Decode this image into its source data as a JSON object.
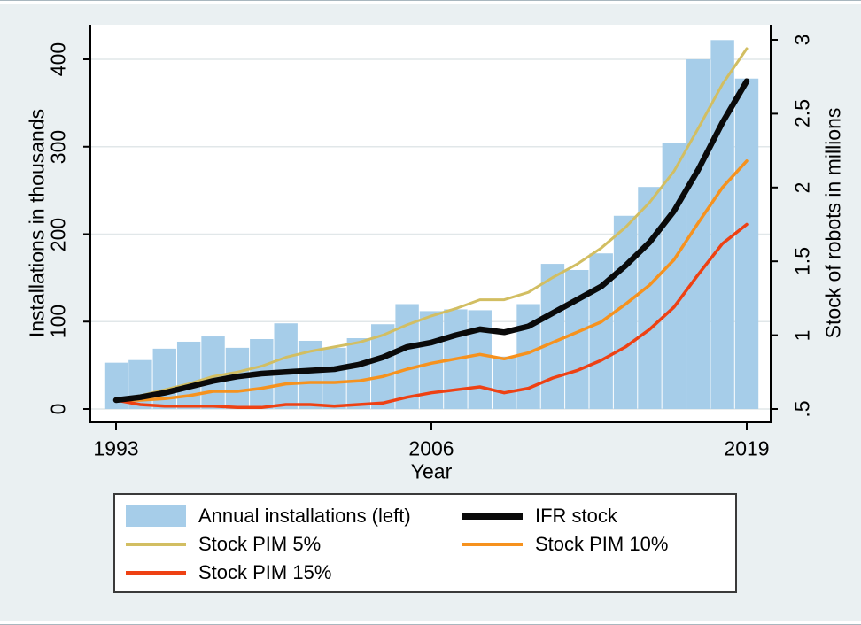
{
  "figure": {
    "background_color": "#EAF0F2",
    "plot_background_color": "#FFFFFF",
    "gridline_color": "#E1E7E9",
    "bar_color": "#A6CDE9",
    "axis_color": "#000000"
  },
  "axes": {
    "left": {
      "title": "Installations in thousands",
      "tick_labels": [
        "0",
        "100",
        "200",
        "300",
        "400"
      ],
      "tick_values": [
        0,
        100,
        200,
        300,
        400
      ]
    },
    "right": {
      "title": "Stock of robots in millions",
      "tick_labels": [
        ".5",
        "1",
        "1.5",
        "2",
        "2.5",
        "3"
      ],
      "tick_values": [
        0.5,
        1,
        1.5,
        2,
        2.5,
        3
      ]
    },
    "x": {
      "title": "Year",
      "tick_labels": [
        "1993",
        "2006",
        "2019"
      ],
      "tick_values": [
        1993,
        2006,
        2019
      ]
    }
  },
  "legend": {
    "items": [
      {
        "label": "Annual installations (left)",
        "color": "#A6CDE9",
        "swatch": "bar"
      },
      {
        "label": "IFR stock",
        "color": "#0A0A0A",
        "swatch": "thick"
      },
      {
        "label": "Stock PIM 5%",
        "color": "#D2BE62",
        "swatch": "line"
      },
      {
        "label": "Stock PIM 10%",
        "color": "#F6921E",
        "swatch": "line"
      },
      {
        "label": "Stock PIM 15%",
        "color": "#EE4113",
        "swatch": "line"
      }
    ]
  },
  "chart_data": {
    "type": "combo-bar-line",
    "x": [
      1993,
      1994,
      1995,
      1996,
      1997,
      1998,
      1999,
      2000,
      2001,
      2002,
      2003,
      2004,
      2005,
      2006,
      2007,
      2008,
      2009,
      2010,
      2011,
      2012,
      2013,
      2014,
      2015,
      2016,
      2017,
      2018,
      2019
    ],
    "xlabel": "Year",
    "left_axis": {
      "label": "Installations in thousands",
      "range": [
        0,
        440
      ],
      "grid": true
    },
    "right_axis": {
      "label": "Stock of robots in millions",
      "range": [
        0.5,
        3.1
      ],
      "grid": false
    },
    "legend_position": "bottom",
    "series": [
      {
        "name": "Annual installations (left)",
        "type": "bar",
        "axis": "left",
        "color": "#A6CDE9",
        "values": [
          53,
          56,
          69,
          77,
          83,
          70,
          80,
          98,
          78,
          70,
          81,
          97,
          120,
          112,
          114,
          113,
          60,
          120,
          166,
          159,
          178,
          221,
          254,
          304,
          400,
          422,
          378
        ]
      },
      {
        "name": "IFR stock",
        "type": "line",
        "axis": "right",
        "color": "#0A0A0A",
        "width": 6.5,
        "values": [
          0.56,
          0.58,
          0.61,
          0.65,
          0.69,
          0.72,
          0.74,
          0.75,
          0.76,
          0.77,
          0.8,
          0.85,
          0.92,
          0.95,
          1.0,
          1.04,
          1.02,
          1.06,
          1.15,
          1.24,
          1.33,
          1.47,
          1.63,
          1.84,
          2.12,
          2.44,
          2.72
        ]
      },
      {
        "name": "Stock PIM 5%",
        "type": "line",
        "axis": "right",
        "color": "#D2BE62",
        "width": 3,
        "values": [
          0.56,
          0.59,
          0.63,
          0.67,
          0.72,
          0.75,
          0.79,
          0.85,
          0.89,
          0.92,
          0.95,
          1.0,
          1.07,
          1.13,
          1.18,
          1.24,
          1.24,
          1.29,
          1.39,
          1.48,
          1.59,
          1.73,
          1.9,
          2.11,
          2.4,
          2.7,
          2.94
        ]
      },
      {
        "name": "Stock PIM 10%",
        "type": "line",
        "axis": "right",
        "color": "#F6921E",
        "width": 3.5,
        "values": [
          0.56,
          0.56,
          0.57,
          0.59,
          0.62,
          0.62,
          0.64,
          0.67,
          0.68,
          0.68,
          0.69,
          0.72,
          0.77,
          0.81,
          0.84,
          0.87,
          0.84,
          0.88,
          0.95,
          1.02,
          1.09,
          1.21,
          1.34,
          1.51,
          1.76,
          2.0,
          2.18
        ]
      },
      {
        "name": "Stock PIM 15%",
        "type": "line",
        "axis": "right",
        "color": "#EE4113",
        "width": 3.5,
        "values": [
          0.56,
          0.53,
          0.52,
          0.52,
          0.52,
          0.51,
          0.51,
          0.53,
          0.53,
          0.52,
          0.53,
          0.54,
          0.58,
          0.61,
          0.63,
          0.65,
          0.61,
          0.64,
          0.71,
          0.76,
          0.83,
          0.92,
          1.04,
          1.19,
          1.41,
          1.62,
          1.75
        ]
      }
    ]
  }
}
